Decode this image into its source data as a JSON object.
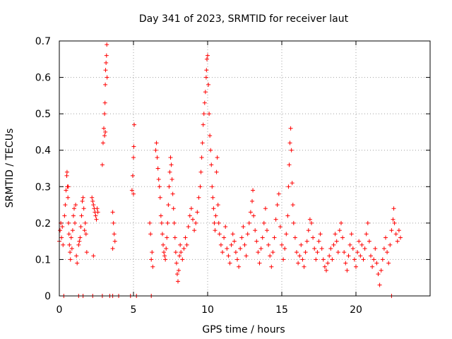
{
  "chart_data": {
    "type": "scatter",
    "title": "Day 341 of 2023, SRMTID for receiver laut",
    "xlabel": "GPS time / hours",
    "ylabel": "SRMTID / TECUs",
    "xlim": [
      0,
      25
    ],
    "ylim": [
      0,
      0.7
    ],
    "xticks": [
      0,
      5,
      10,
      15,
      20
    ],
    "xtick_labels": [
      "0",
      "5",
      "10",
      "15",
      "20"
    ],
    "yticks": [
      0,
      0.1,
      0.2,
      0.3,
      0.4,
      0.5,
      0.6,
      0.7
    ],
    "ytick_labels": [
      "0",
      "0.1",
      "0.2",
      "0.3",
      "0.4",
      "0.5",
      "0.6",
      "0.7"
    ],
    "grid": true,
    "marker": "+",
    "colors": {
      "series": "#ff0000",
      "grid": "#a0a0a0",
      "axis": "#000000"
    },
    "series": [
      {
        "name": "SRMTID",
        "points": [
          [
            0.0,
            0.15
          ],
          [
            0.05,
            0.18
          ],
          [
            0.1,
            0.2
          ],
          [
            0.15,
            0.16
          ],
          [
            0.2,
            0.19
          ],
          [
            0.25,
            0.14
          ],
          [
            0.35,
            0.22
          ],
          [
            0.4,
            0.25
          ],
          [
            0.45,
            0.29
          ],
          [
            0.5,
            0.33
          ],
          [
            0.52,
            0.34
          ],
          [
            0.55,
            0.3
          ],
          [
            0.58,
            0.27
          ],
          [
            0.6,
            0.3
          ],
          [
            0.62,
            0.2
          ],
          [
            0.65,
            0.17
          ],
          [
            0.68,
            0.14
          ],
          [
            0.72,
            0.12
          ],
          [
            0.75,
            0.1
          ],
          [
            0.8,
            0.16
          ],
          [
            0.85,
            0.13
          ],
          [
            0.9,
            0.18
          ],
          [
            0.95,
            0.22
          ],
          [
            1.0,
            0.24
          ],
          [
            1.05,
            0.2
          ],
          [
            1.1,
            0.25
          ],
          [
            1.15,
            0.11
          ],
          [
            1.2,
            0.09
          ],
          [
            1.3,
            0.14
          ],
          [
            1.35,
            0.15
          ],
          [
            1.4,
            0.16
          ],
          [
            1.45,
            0.19
          ],
          [
            1.5,
            0.22
          ],
          [
            1.55,
            0.26
          ],
          [
            1.6,
            0.27
          ],
          [
            1.65,
            0.24
          ],
          [
            1.7,
            0.18
          ],
          [
            1.75,
            0.2
          ],
          [
            1.8,
            0.17
          ],
          [
            1.85,
            0.12
          ],
          [
            2.2,
            0.27
          ],
          [
            2.25,
            0.26
          ],
          [
            2.3,
            0.25
          ],
          [
            2.35,
            0.24
          ],
          [
            2.4,
            0.23
          ],
          [
            2.45,
            0.22
          ],
          [
            2.5,
            0.21
          ],
          [
            2.55,
            0.24
          ],
          [
            2.6,
            0.23
          ],
          [
            2.3,
            0.11
          ],
          [
            2.9,
            0.36
          ],
          [
            2.95,
            0.42
          ],
          [
            3.0,
            0.46
          ],
          [
            3.05,
            0.5
          ],
          [
            3.08,
            0.53
          ],
          [
            3.1,
            0.58
          ],
          [
            3.12,
            0.62
          ],
          [
            3.15,
            0.64
          ],
          [
            3.18,
            0.66
          ],
          [
            3.2,
            0.69
          ],
          [
            3.22,
            0.6
          ],
          [
            3.1,
            0.45
          ],
          [
            3.05,
            0.44
          ],
          [
            3.6,
            0.23
          ],
          [
            3.65,
            0.2
          ],
          [
            3.7,
            0.17
          ],
          [
            3.75,
            0.15
          ],
          [
            3.6,
            0.13
          ],
          [
            4.9,
            0.29
          ],
          [
            4.95,
            0.33
          ],
          [
            5.0,
            0.38
          ],
          [
            5.02,
            0.41
          ],
          [
            5.05,
            0.47
          ],
          [
            5.0,
            0.28
          ],
          [
            6.1,
            0.2
          ],
          [
            6.15,
            0.17
          ],
          [
            6.2,
            0.1
          ],
          [
            6.25,
            0.12
          ],
          [
            6.3,
            0.08
          ],
          [
            6.5,
            0.4
          ],
          [
            6.55,
            0.42
          ],
          [
            6.6,
            0.38
          ],
          [
            6.65,
            0.35
          ],
          [
            6.7,
            0.32
          ],
          [
            6.75,
            0.3
          ],
          [
            6.8,
            0.27
          ],
          [
            6.85,
            0.22
          ],
          [
            6.9,
            0.2
          ],
          [
            6.95,
            0.17
          ],
          [
            7.0,
            0.14
          ],
          [
            7.05,
            0.12
          ],
          [
            7.1,
            0.11
          ],
          [
            7.15,
            0.1
          ],
          [
            7.2,
            0.13
          ],
          [
            7.25,
            0.16
          ],
          [
            7.3,
            0.2
          ],
          [
            7.35,
            0.25
          ],
          [
            7.4,
            0.3
          ],
          [
            7.45,
            0.34
          ],
          [
            7.5,
            0.38
          ],
          [
            7.55,
            0.36
          ],
          [
            7.6,
            0.32
          ],
          [
            7.65,
            0.28
          ],
          [
            7.7,
            0.24
          ],
          [
            7.75,
            0.2
          ],
          [
            7.8,
            0.16
          ],
          [
            7.85,
            0.12
          ],
          [
            7.9,
            0.09
          ],
          [
            7.95,
            0.06
          ],
          [
            8.0,
            0.04
          ],
          [
            8.05,
            0.07
          ],
          [
            8.1,
            0.11
          ],
          [
            8.15,
            0.14
          ],
          [
            8.2,
            0.12
          ],
          [
            8.3,
            0.1
          ],
          [
            8.4,
            0.13
          ],
          [
            8.5,
            0.16
          ],
          [
            8.6,
            0.14
          ],
          [
            8.7,
            0.19
          ],
          [
            8.8,
            0.22
          ],
          [
            8.9,
            0.24
          ],
          [
            9.0,
            0.21
          ],
          [
            9.1,
            0.18
          ],
          [
            9.2,
            0.2
          ],
          [
            9.3,
            0.23
          ],
          [
            9.4,
            0.27
          ],
          [
            9.5,
            0.3
          ],
          [
            9.55,
            0.34
          ],
          [
            9.6,
            0.38
          ],
          [
            9.65,
            0.42
          ],
          [
            9.7,
            0.47
          ],
          [
            9.75,
            0.5
          ],
          [
            9.8,
            0.53
          ],
          [
            9.85,
            0.56
          ],
          [
            9.9,
            0.6
          ],
          [
            9.92,
            0.62
          ],
          [
            9.95,
            0.65
          ],
          [
            10.0,
            0.66
          ],
          [
            10.05,
            0.58
          ],
          [
            10.1,
            0.5
          ],
          [
            10.15,
            0.44
          ],
          [
            10.2,
            0.4
          ],
          [
            10.25,
            0.36
          ],
          [
            10.3,
            0.3
          ],
          [
            10.35,
            0.27
          ],
          [
            10.4,
            0.24
          ],
          [
            10.45,
            0.2
          ],
          [
            10.5,
            0.18
          ],
          [
            10.55,
            0.22
          ],
          [
            10.6,
            0.34
          ],
          [
            10.65,
            0.38
          ],
          [
            10.7,
            0.25
          ],
          [
            10.75,
            0.2
          ],
          [
            10.8,
            0.17
          ],
          [
            10.9,
            0.14
          ],
          [
            11.0,
            0.12
          ],
          [
            11.1,
            0.16
          ],
          [
            11.2,
            0.19
          ],
          [
            11.3,
            0.13
          ],
          [
            11.4,
            0.11
          ],
          [
            11.5,
            0.09
          ],
          [
            11.6,
            0.14
          ],
          [
            11.7,
            0.17
          ],
          [
            11.8,
            0.15
          ],
          [
            11.9,
            0.12
          ],
          [
            12.0,
            0.1
          ],
          [
            12.1,
            0.08
          ],
          [
            12.2,
            0.13
          ],
          [
            12.3,
            0.16
          ],
          [
            12.4,
            0.19
          ],
          [
            12.5,
            0.14
          ],
          [
            12.6,
            0.11
          ],
          [
            12.7,
            0.17
          ],
          [
            12.8,
            0.2
          ],
          [
            12.9,
            0.23
          ],
          [
            13.0,
            0.26
          ],
          [
            13.05,
            0.29
          ],
          [
            13.1,
            0.22
          ],
          [
            13.2,
            0.18
          ],
          [
            13.3,
            0.15
          ],
          [
            13.4,
            0.12
          ],
          [
            13.5,
            0.09
          ],
          [
            13.6,
            0.13
          ],
          [
            13.7,
            0.16
          ],
          [
            13.8,
            0.2
          ],
          [
            13.9,
            0.24
          ],
          [
            14.0,
            0.18
          ],
          [
            14.1,
            0.14
          ],
          [
            14.2,
            0.11
          ],
          [
            14.3,
            0.08
          ],
          [
            14.4,
            0.12
          ],
          [
            14.5,
            0.16
          ],
          [
            14.6,
            0.21
          ],
          [
            14.7,
            0.25
          ],
          [
            14.8,
            0.28
          ],
          [
            14.9,
            0.19
          ],
          [
            15.0,
            0.14
          ],
          [
            15.1,
            0.1
          ],
          [
            15.2,
            0.13
          ],
          [
            15.3,
            0.17
          ],
          [
            15.4,
            0.22
          ],
          [
            15.45,
            0.3
          ],
          [
            15.5,
            0.36
          ],
          [
            15.55,
            0.42
          ],
          [
            15.6,
            0.46
          ],
          [
            15.65,
            0.4
          ],
          [
            15.7,
            0.31
          ],
          [
            15.75,
            0.25
          ],
          [
            15.8,
            0.2
          ],
          [
            15.9,
            0.16
          ],
          [
            16.0,
            0.12
          ],
          [
            16.1,
            0.09
          ],
          [
            16.2,
            0.11
          ],
          [
            16.3,
            0.14
          ],
          [
            16.4,
            0.1
          ],
          [
            16.5,
            0.08
          ],
          [
            16.6,
            0.12
          ],
          [
            16.7,
            0.15
          ],
          [
            16.8,
            0.18
          ],
          [
            16.9,
            0.21
          ],
          [
            17.0,
            0.2
          ],
          [
            17.1,
            0.16
          ],
          [
            17.2,
            0.13
          ],
          [
            17.3,
            0.1
          ],
          [
            17.4,
            0.12
          ],
          [
            17.5,
            0.15
          ],
          [
            17.6,
            0.17
          ],
          [
            17.7,
            0.13
          ],
          [
            17.8,
            0.1
          ],
          [
            17.9,
            0.08
          ],
          [
            18.0,
            0.07
          ],
          [
            18.1,
            0.09
          ],
          [
            18.2,
            0.11
          ],
          [
            18.3,
            0.13
          ],
          [
            18.4,
            0.1
          ],
          [
            18.5,
            0.14
          ],
          [
            18.6,
            0.17
          ],
          [
            18.7,
            0.15
          ],
          [
            18.8,
            0.12
          ],
          [
            18.9,
            0.18
          ],
          [
            19.0,
            0.2
          ],
          [
            19.1,
            0.16
          ],
          [
            19.2,
            0.12
          ],
          [
            19.3,
            0.09
          ],
          [
            19.4,
            0.07
          ],
          [
            19.5,
            0.11
          ],
          [
            19.6,
            0.14
          ],
          [
            19.7,
            0.17
          ],
          [
            19.8,
            0.13
          ],
          [
            19.9,
            0.1
          ],
          [
            20.0,
            0.08
          ],
          [
            20.1,
            0.12
          ],
          [
            20.2,
            0.15
          ],
          [
            20.3,
            0.11
          ],
          [
            20.4,
            0.14
          ],
          [
            20.5,
            0.1
          ],
          [
            20.6,
            0.13
          ],
          [
            20.7,
            0.17
          ],
          [
            20.8,
            0.2
          ],
          [
            20.9,
            0.15
          ],
          [
            21.0,
            0.11
          ],
          [
            21.1,
            0.08
          ],
          [
            21.2,
            0.1
          ],
          [
            21.3,
            0.13
          ],
          [
            21.4,
            0.09
          ],
          [
            21.5,
            0.06
          ],
          [
            21.6,
            0.03
          ],
          [
            21.7,
            0.07
          ],
          [
            21.8,
            0.1
          ],
          [
            21.9,
            0.13
          ],
          [
            22.0,
            0.16
          ],
          [
            22.1,
            0.12
          ],
          [
            22.2,
            0.09
          ],
          [
            22.3,
            0.14
          ],
          [
            22.4,
            0.18
          ],
          [
            22.5,
            0.21
          ],
          [
            22.55,
            0.24
          ],
          [
            22.6,
            0.2
          ],
          [
            22.7,
            0.17
          ],
          [
            22.8,
            0.15
          ],
          [
            22.9,
            0.18
          ],
          [
            23.0,
            0.16
          ],
          [
            0.3,
            0.0
          ],
          [
            1.3,
            0.0
          ],
          [
            1.6,
            0.0
          ],
          [
            2.25,
            0.0
          ],
          [
            2.9,
            0.0
          ],
          [
            3.4,
            0.0
          ],
          [
            3.6,
            0.0
          ],
          [
            4.0,
            0.0
          ],
          [
            4.8,
            0.0
          ],
          [
            5.2,
            0.0
          ],
          [
            6.2,
            0.0
          ],
          [
            22.4,
            0.0
          ]
        ]
      }
    ]
  }
}
